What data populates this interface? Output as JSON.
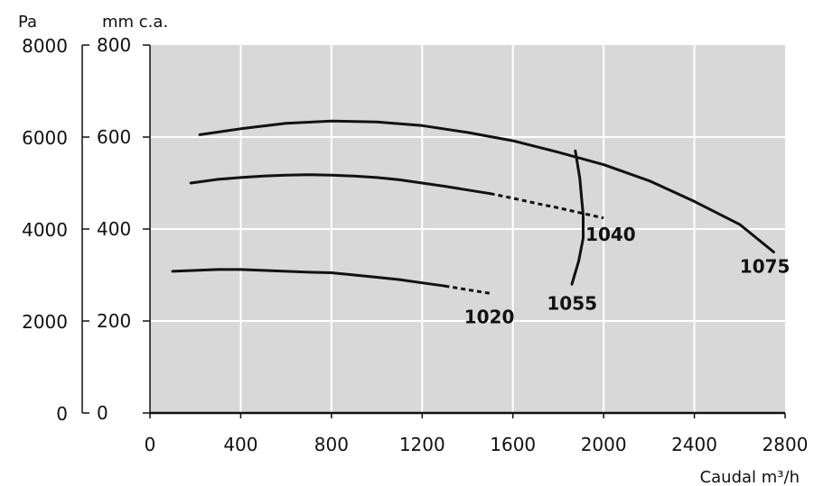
{
  "chart_data": {
    "type": "line",
    "xlabel": "Caudal m³/h",
    "ylabel_left": "Pa",
    "ylabel_right": "mm c.a.",
    "xlim": [
      0,
      2800
    ],
    "ylim": [
      0,
      800
    ],
    "ylim_pa": [
      0,
      8000
    ],
    "x_ticks": [
      "0",
      "400",
      "800",
      "1200",
      "1600",
      "2000",
      "2400",
      "2800"
    ],
    "y_ticks_mmca": [
      "0",
      "200",
      "400",
      "600",
      "800"
    ],
    "y_ticks_pa": [
      "0",
      "2000",
      "4000",
      "6000",
      "8000"
    ],
    "grid": true,
    "background_color": "#d8d8d8",
    "series": [
      {
        "name": "1020",
        "x": [
          100,
          200,
          300,
          400,
          500,
          600,
          700,
          800,
          900,
          1000,
          1100,
          1200,
          1300,
          1400,
          1500
        ],
        "y": [
          308,
          310,
          312,
          312,
          310,
          308,
          306,
          305,
          300,
          295,
          290,
          283,
          276,
          268,
          260
        ],
        "dashed_from_x": 1350
      },
      {
        "name": "1040",
        "x": [
          180,
          300,
          400,
          500,
          600,
          700,
          800,
          900,
          1000,
          1100,
          1200,
          1300,
          1400,
          1500,
          1600,
          1700,
          1800,
          1900,
          2000
        ],
        "y": [
          500,
          508,
          512,
          515,
          517,
          518,
          517,
          515,
          512,
          507,
          500,
          493,
          485,
          477,
          467,
          456,
          446,
          435,
          424
        ],
        "dashed_from_x": 1570
      },
      {
        "name": "1075",
        "x": [
          220,
          400,
          600,
          800,
          1000,
          1200,
          1400,
          1600,
          1800,
          2000,
          2200,
          2400,
          2600,
          2750
        ],
        "y": [
          605,
          618,
          630,
          635,
          633,
          625,
          610,
          592,
          567,
          540,
          505,
          460,
          410,
          350
        ]
      },
      {
        "name": "1055",
        "x": [
          1860,
          1890,
          1910,
          1910,
          1895,
          1875
        ],
        "y": [
          280,
          330,
          380,
          430,
          510,
          570
        ]
      }
    ],
    "labels": [
      {
        "text": "1020",
        "x": 1385,
        "y": 195
      },
      {
        "text": "1040",
        "x": 1920,
        "y": 375
      },
      {
        "text": "1055",
        "x": 1750,
        "y": 225
      },
      {
        "text": "1075",
        "x": 2600,
        "y": 305
      }
    ]
  }
}
